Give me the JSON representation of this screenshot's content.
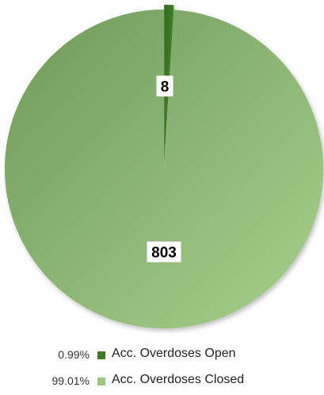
{
  "chart_data": {
    "type": "pie",
    "slices": [
      {
        "label": "Acc. Overdoses Open",
        "value": 8,
        "percent_label": "0.99%",
        "color": "#3f7a25"
      },
      {
        "label": "Acc. Overdoses Closed",
        "value": 803,
        "percent_label": "99.01%",
        "color": "#8fbd6e"
      }
    ],
    "legend_position": "bottom",
    "data_labels": true
  }
}
